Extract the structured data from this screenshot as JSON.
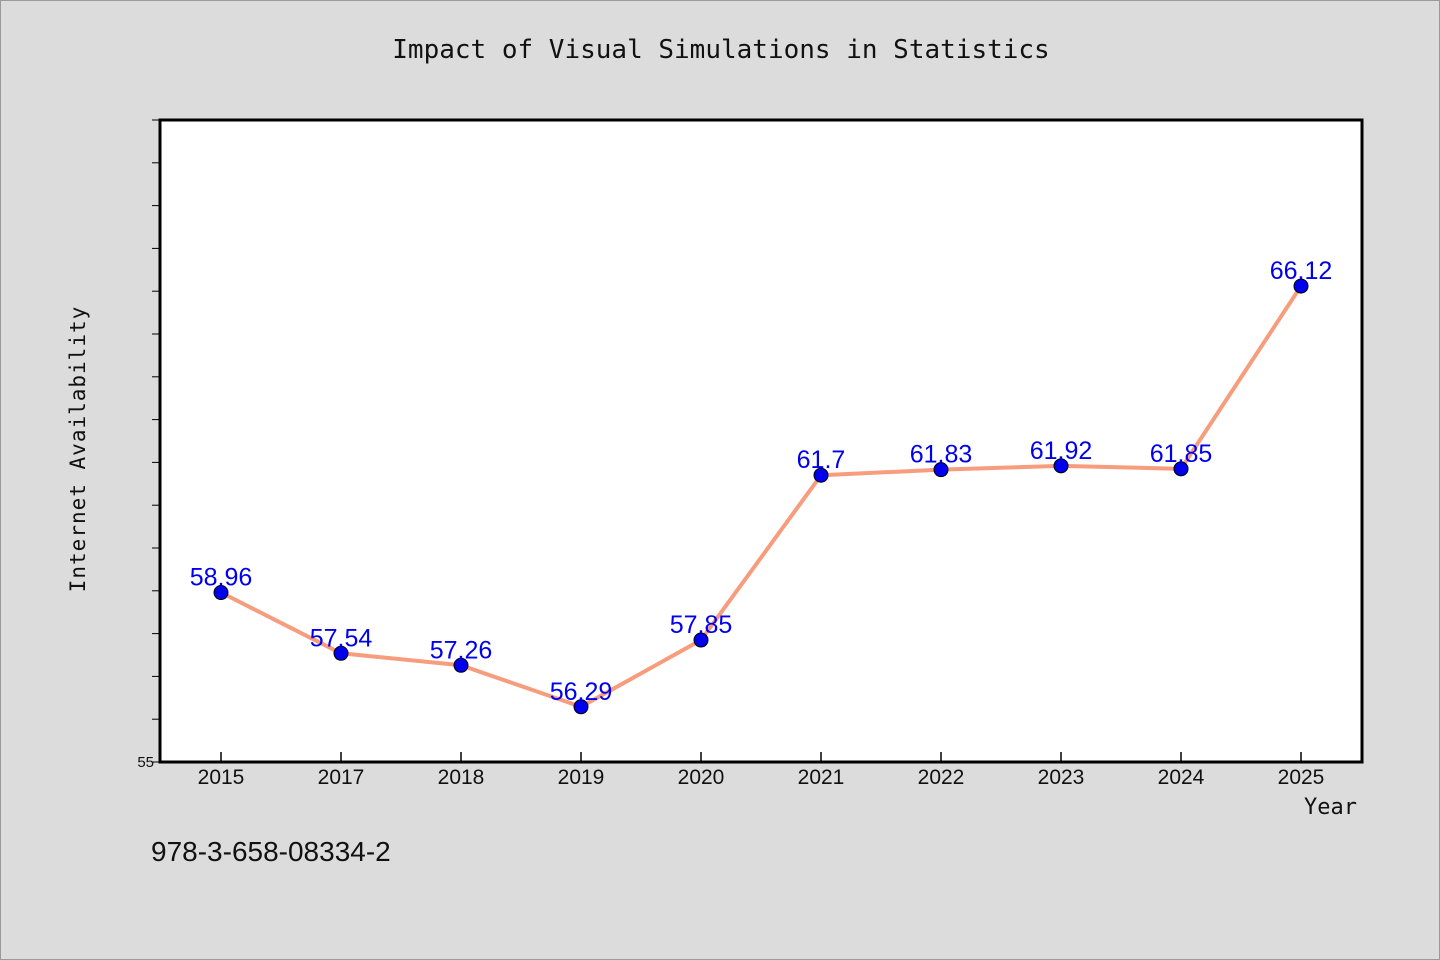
{
  "chart_data": {
    "type": "line",
    "title": "Impact of Visual Simulations in Statistics",
    "xlabel": "Year",
    "ylabel": "Internet Availability",
    "categories": [
      "2015",
      "2017",
      "2018",
      "2019",
      "2020",
      "2021",
      "2022",
      "2023",
      "2024",
      "2025"
    ],
    "series": [
      {
        "values": [
          58.96,
          57.54,
          57.26,
          56.29,
          57.85,
          61.7,
          61.83,
          61.92,
          61.85,
          66.12
        ],
        "labels": [
          "58.96",
          "57.54",
          "57.26",
          "56.29",
          "57.85",
          "61.7",
          "61.83",
          "61.92",
          "61.85",
          "66.12"
        ],
        "line_color": "#f79c7c",
        "marker_color": "#0000ee",
        "label_color": "#0000ee"
      }
    ],
    "ylim": [
      55,
      70
    ],
    "y_tick_labels": [
      "55"
    ],
    "grid": false,
    "legend": "none"
  },
  "footer_text": "978-3-658-08334-2",
  "colors": {
    "background": "#dcdcdc",
    "plot_background": "#ffffff",
    "axis": "#000000"
  }
}
